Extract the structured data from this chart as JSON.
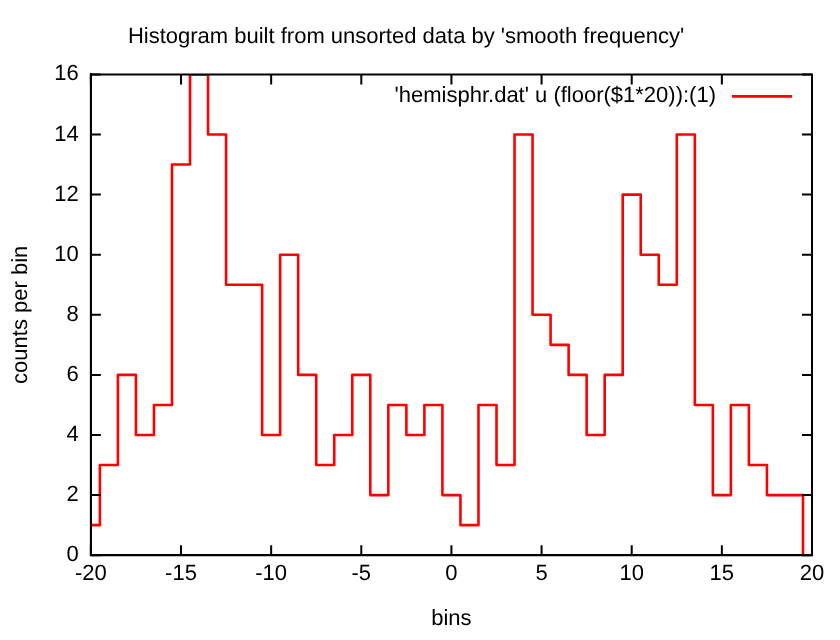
{
  "chart_data": {
    "type": "step",
    "title": "Histogram built from unsorted data by 'smooth frequency'",
    "xlabel": "bins",
    "ylabel": "counts per bin",
    "x": [
      -20,
      -19,
      -18,
      -17,
      -16,
      -15,
      -14,
      -13,
      -12,
      -11,
      -10,
      -9,
      -8,
      -7,
      -6,
      -5,
      -4,
      -3,
      -2,
      -1,
      0,
      1,
      2,
      3,
      4,
      5,
      6,
      7,
      8,
      9,
      10,
      11,
      12,
      13,
      14,
      15,
      16,
      17,
      18,
      19,
      20
    ],
    "series": [
      {
        "name": "'hemisphr.dat' u (floor($1*20)):(1)",
        "color": "#ff0000",
        "values": [
          1,
          3,
          6,
          4,
          5,
          13,
          16,
          14,
          9,
          9,
          4,
          10,
          6,
          3,
          4,
          6,
          2,
          5,
          4,
          5,
          2,
          1,
          5,
          3,
          14,
          8,
          7,
          6,
          4,
          6,
          12,
          10,
          9,
          14,
          5,
          2,
          5,
          3,
          2,
          2,
          0
        ]
      }
    ],
    "xlim": [
      -20,
      20
    ],
    "xticks": [
      -20,
      -15,
      -10,
      -5,
      0,
      5,
      10,
      15,
      20
    ],
    "ylim": [
      0,
      16
    ],
    "yticks": [
      0,
      2,
      4,
      6,
      8,
      10,
      12,
      14,
      16
    ],
    "grid": false,
    "legend": "top right",
    "marker": "none",
    "line_style": "solid"
  }
}
